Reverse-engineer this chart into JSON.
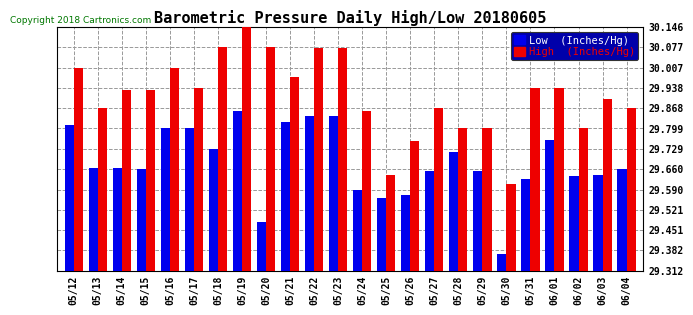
{
  "title": "Barometric Pressure Daily High/Low 20180605",
  "copyright": "Copyright 2018 Cartronics.com",
  "legend_low": "Low  (Inches/Hg)",
  "legend_high": "High  (Inches/Hg)",
  "dates": [
    "05/12",
    "05/13",
    "05/14",
    "05/15",
    "05/16",
    "05/17",
    "05/18",
    "05/19",
    "05/20",
    "05/21",
    "05/22",
    "05/23",
    "05/24",
    "05/25",
    "05/26",
    "05/27",
    "05/28",
    "05/29",
    "05/30",
    "05/31",
    "06/01",
    "06/02",
    "06/03",
    "06/04"
  ],
  "low": [
    29.81,
    29.665,
    29.665,
    29.66,
    29.8,
    29.8,
    29.73,
    29.86,
    29.48,
    29.82,
    29.84,
    29.84,
    29.59,
    29.56,
    29.57,
    29.655,
    29.72,
    29.655,
    29.37,
    29.625,
    29.76,
    29.635,
    29.64,
    29.66
  ],
  "high": [
    30.005,
    29.87,
    29.93,
    29.93,
    30.007,
    29.938,
    30.077,
    30.146,
    30.077,
    29.975,
    30.075,
    30.075,
    29.86,
    29.638,
    29.755,
    29.87,
    29.8,
    29.8,
    29.61,
    29.938,
    29.938,
    29.8,
    29.9,
    29.868
  ],
  "ymin": 29.312,
  "ymax": 30.146,
  "yticks": [
    29.312,
    29.382,
    29.451,
    29.521,
    29.59,
    29.66,
    29.729,
    29.799,
    29.868,
    29.938,
    30.007,
    30.077,
    30.146
  ],
  "bar_width": 0.38,
  "low_color": "#0000ee",
  "high_color": "#ee0000",
  "bg_color": "#ffffff",
  "grid_color": "#999999",
  "title_fontsize": 11,
  "tick_fontsize": 7,
  "legend_fontsize": 7.5,
  "legend_bg": "#0000aa"
}
